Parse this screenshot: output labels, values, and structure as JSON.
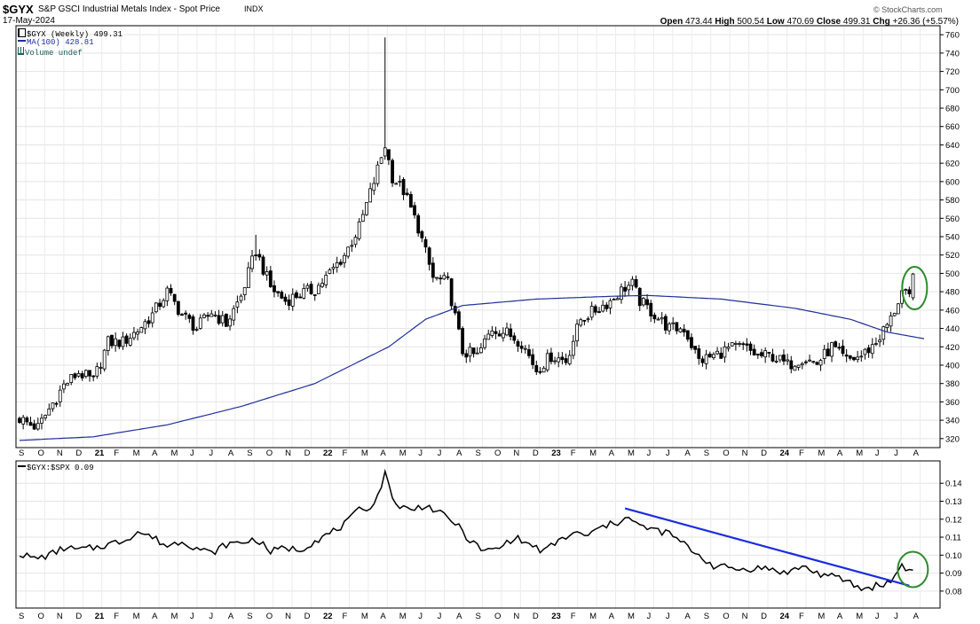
{
  "header": {
    "symbol": "$GYX",
    "name": "S&P GSCI Industrial Metals Index - Spot Price",
    "exchange": "INDX",
    "date": "17-May-2024",
    "watermark": "© StockCharts.com",
    "open_label": "Open",
    "open": "473.44",
    "high_label": "High",
    "high": "500.54",
    "low_label": "Low",
    "low": "470.69",
    "close_label": "Close",
    "close": "499.31",
    "chg_label": "Chg",
    "chg": "+26.36 (+5.57%)"
  },
  "legend": {
    "price": "$GYX (Weekly) 499.31",
    "ma": "MA(100) 428.81",
    "volume": "Volume undef",
    "ratio": "$GYX:$SPX 0.09"
  },
  "colors": {
    "candle": "#000000",
    "ma": "#1f2f9a",
    "trendline": "#1a2be0",
    "circle": "#2e8b2e",
    "grid": "#e4e4e4"
  },
  "chart_data": [
    {
      "type": "candlestick",
      "title": "$GYX (Weekly)",
      "ylim": [
        315,
        765
      ],
      "y_ticks": [
        320,
        340,
        360,
        380,
        400,
        420,
        440,
        460,
        480,
        500,
        520,
        540,
        560,
        580,
        600,
        620,
        640,
        660,
        680,
        700,
        720,
        740,
        760
      ],
      "x_labels": [
        "S",
        "O",
        "N",
        "D",
        "21",
        "F",
        "M",
        "A",
        "M",
        "J",
        "J",
        "A",
        "S",
        "O",
        "N",
        "D",
        "22",
        "F",
        "M",
        "A",
        "M",
        "J",
        "J",
        "A",
        "S",
        "O",
        "N",
        "D",
        "23",
        "F",
        "M",
        "A",
        "M",
        "J",
        "J",
        "A",
        "S",
        "O",
        "N",
        "D",
        "24",
        "F",
        "M",
        "A",
        "M",
        "J",
        "J",
        "A"
      ],
      "x_labels_bold": [
        "21",
        "22",
        "23",
        "24"
      ],
      "close_anchors": [
        [
          0,
          342
        ],
        [
          3,
          335
        ],
        [
          5,
          332
        ],
        [
          8,
          352
        ],
        [
          12,
          378
        ],
        [
          16,
          392
        ],
        [
          20,
          383
        ],
        [
          24,
          425
        ],
        [
          28,
          425
        ],
        [
          32,
          438
        ],
        [
          36,
          455
        ],
        [
          40,
          480
        ],
        [
          44,
          455
        ],
        [
          48,
          440
        ],
        [
          52,
          458
        ],
        [
          56,
          445
        ],
        [
          60,
          475
        ],
        [
          64,
          525
        ],
        [
          68,
          485
        ],
        [
          72,
          470
        ],
        [
          76,
          478
        ],
        [
          80,
          482
        ],
        [
          84,
          500
        ],
        [
          88,
          520
        ],
        [
          92,
          550
        ],
        [
          96,
          600
        ],
        [
          99,
          640
        ],
        [
          101,
          605
        ],
        [
          104,
          590
        ],
        [
          108,
          550
        ],
        [
          112,
          495
        ],
        [
          116,
          490
        ],
        [
          120,
          415
        ],
        [
          124,
          410
        ],
        [
          128,
          440
        ],
        [
          132,
          435
        ],
        [
          136,
          425
        ],
        [
          140,
          395
        ],
        [
          144,
          410
        ],
        [
          148,
          405
        ],
        [
          152,
          450
        ],
        [
          156,
          460
        ],
        [
          160,
          470
        ],
        [
          164,
          485
        ],
        [
          166,
          488
        ],
        [
          168,
          470
        ],
        [
          172,
          455
        ],
        [
          176,
          440
        ],
        [
          180,
          440
        ],
        [
          184,
          405
        ],
        [
          188,
          410
        ],
        [
          192,
          418
        ],
        [
          196,
          420
        ],
        [
          200,
          410
        ],
        [
          204,
          410
        ],
        [
          208,
          400
        ],
        [
          212,
          408
        ],
        [
          216,
          402
        ],
        [
          220,
          420
        ],
        [
          224,
          405
        ],
        [
          228,
          410
        ],
        [
          232,
          425
        ],
        [
          236,
          450
        ],
        [
          239,
          480
        ],
        [
          241,
          472
        ],
        [
          242,
          499.31
        ]
      ],
      "spikes": [
        {
          "index": 99,
          "high": 757
        },
        {
          "index": 64,
          "high": 542
        },
        {
          "index": 166,
          "high": 497
        }
      ],
      "ma_label": "MA(100)",
      "ma_anchors": [
        [
          0,
          318
        ],
        [
          20,
          322
        ],
        [
          40,
          335
        ],
        [
          60,
          355
        ],
        [
          80,
          380
        ],
        [
          100,
          420
        ],
        [
          110,
          450
        ],
        [
          120,
          465
        ],
        [
          140,
          472
        ],
        [
          160,
          475
        ],
        [
          170,
          476
        ],
        [
          190,
          472
        ],
        [
          210,
          462
        ],
        [
          225,
          450
        ],
        [
          235,
          436
        ],
        [
          245,
          428.81
        ]
      ],
      "highlight_circle_index": 241
    },
    {
      "type": "line",
      "title": "$GYX:$SPX",
      "ylim": [
        0.0755,
        0.1475
      ],
      "y_ticks": [
        0.08,
        0.09,
        0.1,
        0.11,
        0.12,
        0.13,
        0.14
      ],
      "x_labels": [
        "S",
        "O",
        "N",
        "D",
        "21",
        "F",
        "M",
        "A",
        "M",
        "J",
        "J",
        "A",
        "S",
        "O",
        "N",
        "D",
        "22",
        "F",
        "M",
        "A",
        "M",
        "J",
        "J",
        "A",
        "S",
        "O",
        "N",
        "D",
        "23",
        "F",
        "M",
        "A",
        "M",
        "J",
        "J",
        "A",
        "S",
        "O",
        "N",
        "D",
        "24",
        "F",
        "M",
        "A",
        "M",
        "J",
        "J",
        "A"
      ],
      "x_labels_bold": [
        "21",
        "22",
        "23",
        "24"
      ],
      "anchors": [
        [
          0,
          0.101
        ],
        [
          4,
          0.098
        ],
        [
          8,
          0.1
        ],
        [
          12,
          0.104
        ],
        [
          16,
          0.103
        ],
        [
          20,
          0.104
        ],
        [
          24,
          0.106
        ],
        [
          28,
          0.108
        ],
        [
          32,
          0.113
        ],
        [
          36,
          0.11
        ],
        [
          40,
          0.105
        ],
        [
          44,
          0.108
        ],
        [
          48,
          0.104
        ],
        [
          52,
          0.101
        ],
        [
          56,
          0.106
        ],
        [
          60,
          0.107
        ],
        [
          64,
          0.109
        ],
        [
          68,
          0.102
        ],
        [
          72,
          0.104
        ],
        [
          76,
          0.103
        ],
        [
          80,
          0.108
        ],
        [
          84,
          0.112
        ],
        [
          88,
          0.117
        ],
        [
          92,
          0.125
        ],
        [
          96,
          0.128
        ],
        [
          99,
          0.145
        ],
        [
          102,
          0.128
        ],
        [
          106,
          0.125
        ],
        [
          110,
          0.128
        ],
        [
          114,
          0.123
        ],
        [
          118,
          0.118
        ],
        [
          122,
          0.108
        ],
        [
          126,
          0.102
        ],
        [
          130,
          0.104
        ],
        [
          134,
          0.11
        ],
        [
          138,
          0.106
        ],
        [
          142,
          0.102
        ],
        [
          146,
          0.108
        ],
        [
          150,
          0.112
        ],
        [
          154,
          0.111
        ],
        [
          158,
          0.116
        ],
        [
          162,
          0.118
        ],
        [
          164,
          0.122
        ],
        [
          168,
          0.116
        ],
        [
          172,
          0.114
        ],
        [
          176,
          0.112
        ],
        [
          180,
          0.106
        ],
        [
          184,
          0.1
        ],
        [
          188,
          0.094
        ],
        [
          192,
          0.093
        ],
        [
          196,
          0.092
        ],
        [
          200,
          0.093
        ],
        [
          204,
          0.092
        ],
        [
          208,
          0.09
        ],
        [
          212,
          0.094
        ],
        [
          216,
          0.09
        ],
        [
          220,
          0.088
        ],
        [
          224,
          0.086
        ],
        [
          228,
          0.081
        ],
        [
          232,
          0.083
        ],
        [
          236,
          0.085
        ],
        [
          239,
          0.095
        ],
        [
          241,
          0.091
        ],
        [
          242,
          0.093
        ]
      ],
      "trendline": [
        [
          164,
          0.126
        ],
        [
          241,
          0.083
        ]
      ],
      "highlight_circle_index": 241
    }
  ]
}
